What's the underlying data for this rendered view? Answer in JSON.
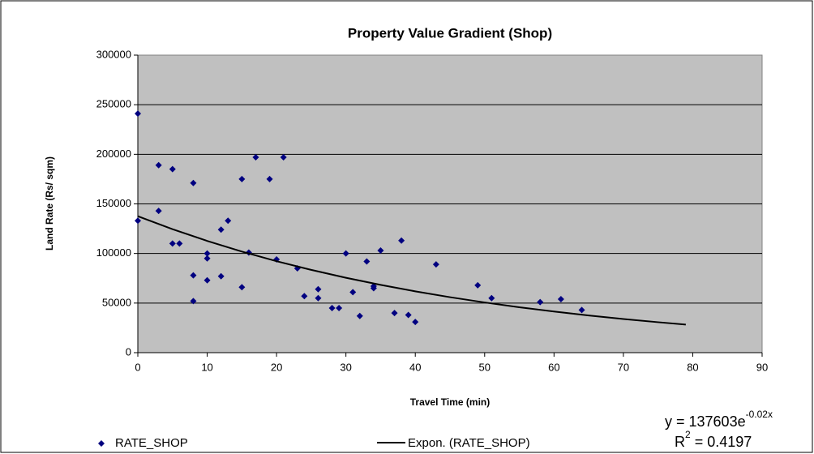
{
  "chart_data": {
    "type": "scatter",
    "title": "Property Value Gradient (Shop)",
    "x_label": "Travel Time (min)",
    "y_label": "Land Rate (Rs/ sqm)",
    "xlim": [
      0,
      90
    ],
    "xticks": [
      0,
      10,
      20,
      30,
      40,
      50,
      60,
      70,
      80,
      90
    ],
    "ylim": [
      0,
      300000
    ],
    "yticks": [
      0,
      50000,
      100000,
      150000,
      200000,
      250000,
      300000
    ],
    "grid": true,
    "series": [
      {
        "name": "RATE_SHOP",
        "color": "#000080",
        "x": [
          0,
          0,
          3,
          3,
          5,
          5,
          6,
          8,
          8,
          8,
          10,
          10,
          10,
          12,
          12,
          13,
          15,
          15,
          16,
          17,
          19,
          20,
          21,
          23,
          24,
          26,
          26,
          28,
          29,
          30,
          31,
          32,
          33,
          34,
          34,
          35,
          37,
          38,
          39,
          40,
          43,
          49,
          51,
          58,
          61,
          64
        ],
        "values": [
          241000,
          133000,
          189000,
          143000,
          185000,
          110000,
          110000,
          171000,
          78000,
          52000,
          100000,
          95000,
          73000,
          124000,
          77000,
          133000,
          175000,
          66000,
          101000,
          197000,
          175000,
          94000,
          197000,
          85000,
          57000,
          64000,
          55000,
          45000,
          45000,
          100000,
          61000,
          37000,
          92000,
          65000,
          67000,
          103000,
          40000,
          113000,
          38000,
          31000,
          89000,
          68000,
          55000,
          51000,
          54000,
          43000
        ]
      }
    ],
    "trendline": {
      "name": "Expon. (RATE_SHOP)",
      "color": "#000000",
      "x": [
        0,
        5,
        10,
        15,
        20,
        25,
        30,
        35,
        40,
        45,
        50,
        55,
        60,
        65,
        70,
        75,
        79
      ],
      "values": [
        137603,
        124509,
        112661,
        101938,
        92238,
        83461,
        75518,
        68332,
        61829,
        55945,
        50621,
        45804,
        41445,
        37501,
        33932,
        30704,
        28343
      ],
      "equation": {
        "text": "y = 137603e",
        "exponent": "-0.02x"
      },
      "r_squared": {
        "text": "R",
        "exponent": "2",
        "rest": " = 0.4197"
      }
    }
  }
}
